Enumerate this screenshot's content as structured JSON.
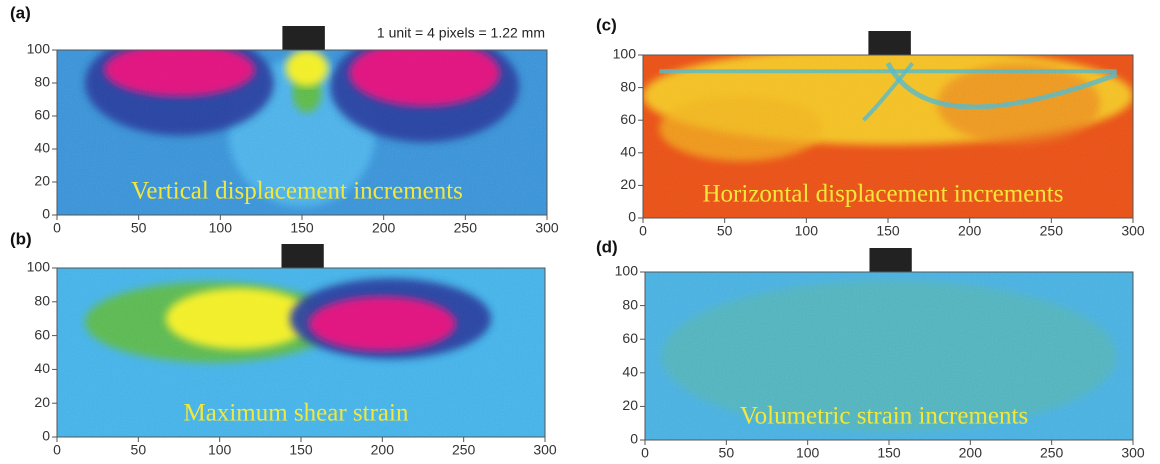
{
  "chart_data": [
    {
      "type": "field",
      "panel_label": "(a)",
      "annotation": "Vertical displacement increments",
      "note": "1 unit = 4 pixels = 1.22 mm",
      "xlim": [
        0,
        300
      ],
      "ylim": [
        0,
        100
      ],
      "xticks": [
        0,
        50,
        100,
        150,
        200,
        250,
        300
      ],
      "yticks": [
        0,
        20,
        40,
        60,
        80,
        100
      ]
    },
    {
      "type": "field",
      "panel_label": "(b)",
      "annotation": "Maximum shear strain",
      "xlim": [
        0,
        300
      ],
      "ylim": [
        0,
        100
      ],
      "xticks": [
        0,
        50,
        100,
        150,
        200,
        250,
        300
      ],
      "yticks": [
        0,
        20,
        40,
        60,
        80,
        100
      ]
    },
    {
      "type": "field",
      "panel_label": "(c)",
      "annotation": "Horizontal displacement increments",
      "xlim": [
        0,
        300
      ],
      "ylim": [
        0,
        100
      ],
      "xticks": [
        0,
        50,
        100,
        150,
        200,
        250,
        300
      ],
      "yticks": [
        0,
        20,
        40,
        60,
        80,
        100
      ]
    },
    {
      "type": "field",
      "panel_label": "(d)",
      "annotation": "Volumetric strain increments",
      "xlim": [
        0,
        300
      ],
      "ylim": [
        0,
        100
      ],
      "xticks": [
        0,
        50,
        100,
        150,
        200,
        250,
        300
      ],
      "yticks": [
        0,
        20,
        40,
        60,
        80,
        100
      ]
    }
  ]
}
